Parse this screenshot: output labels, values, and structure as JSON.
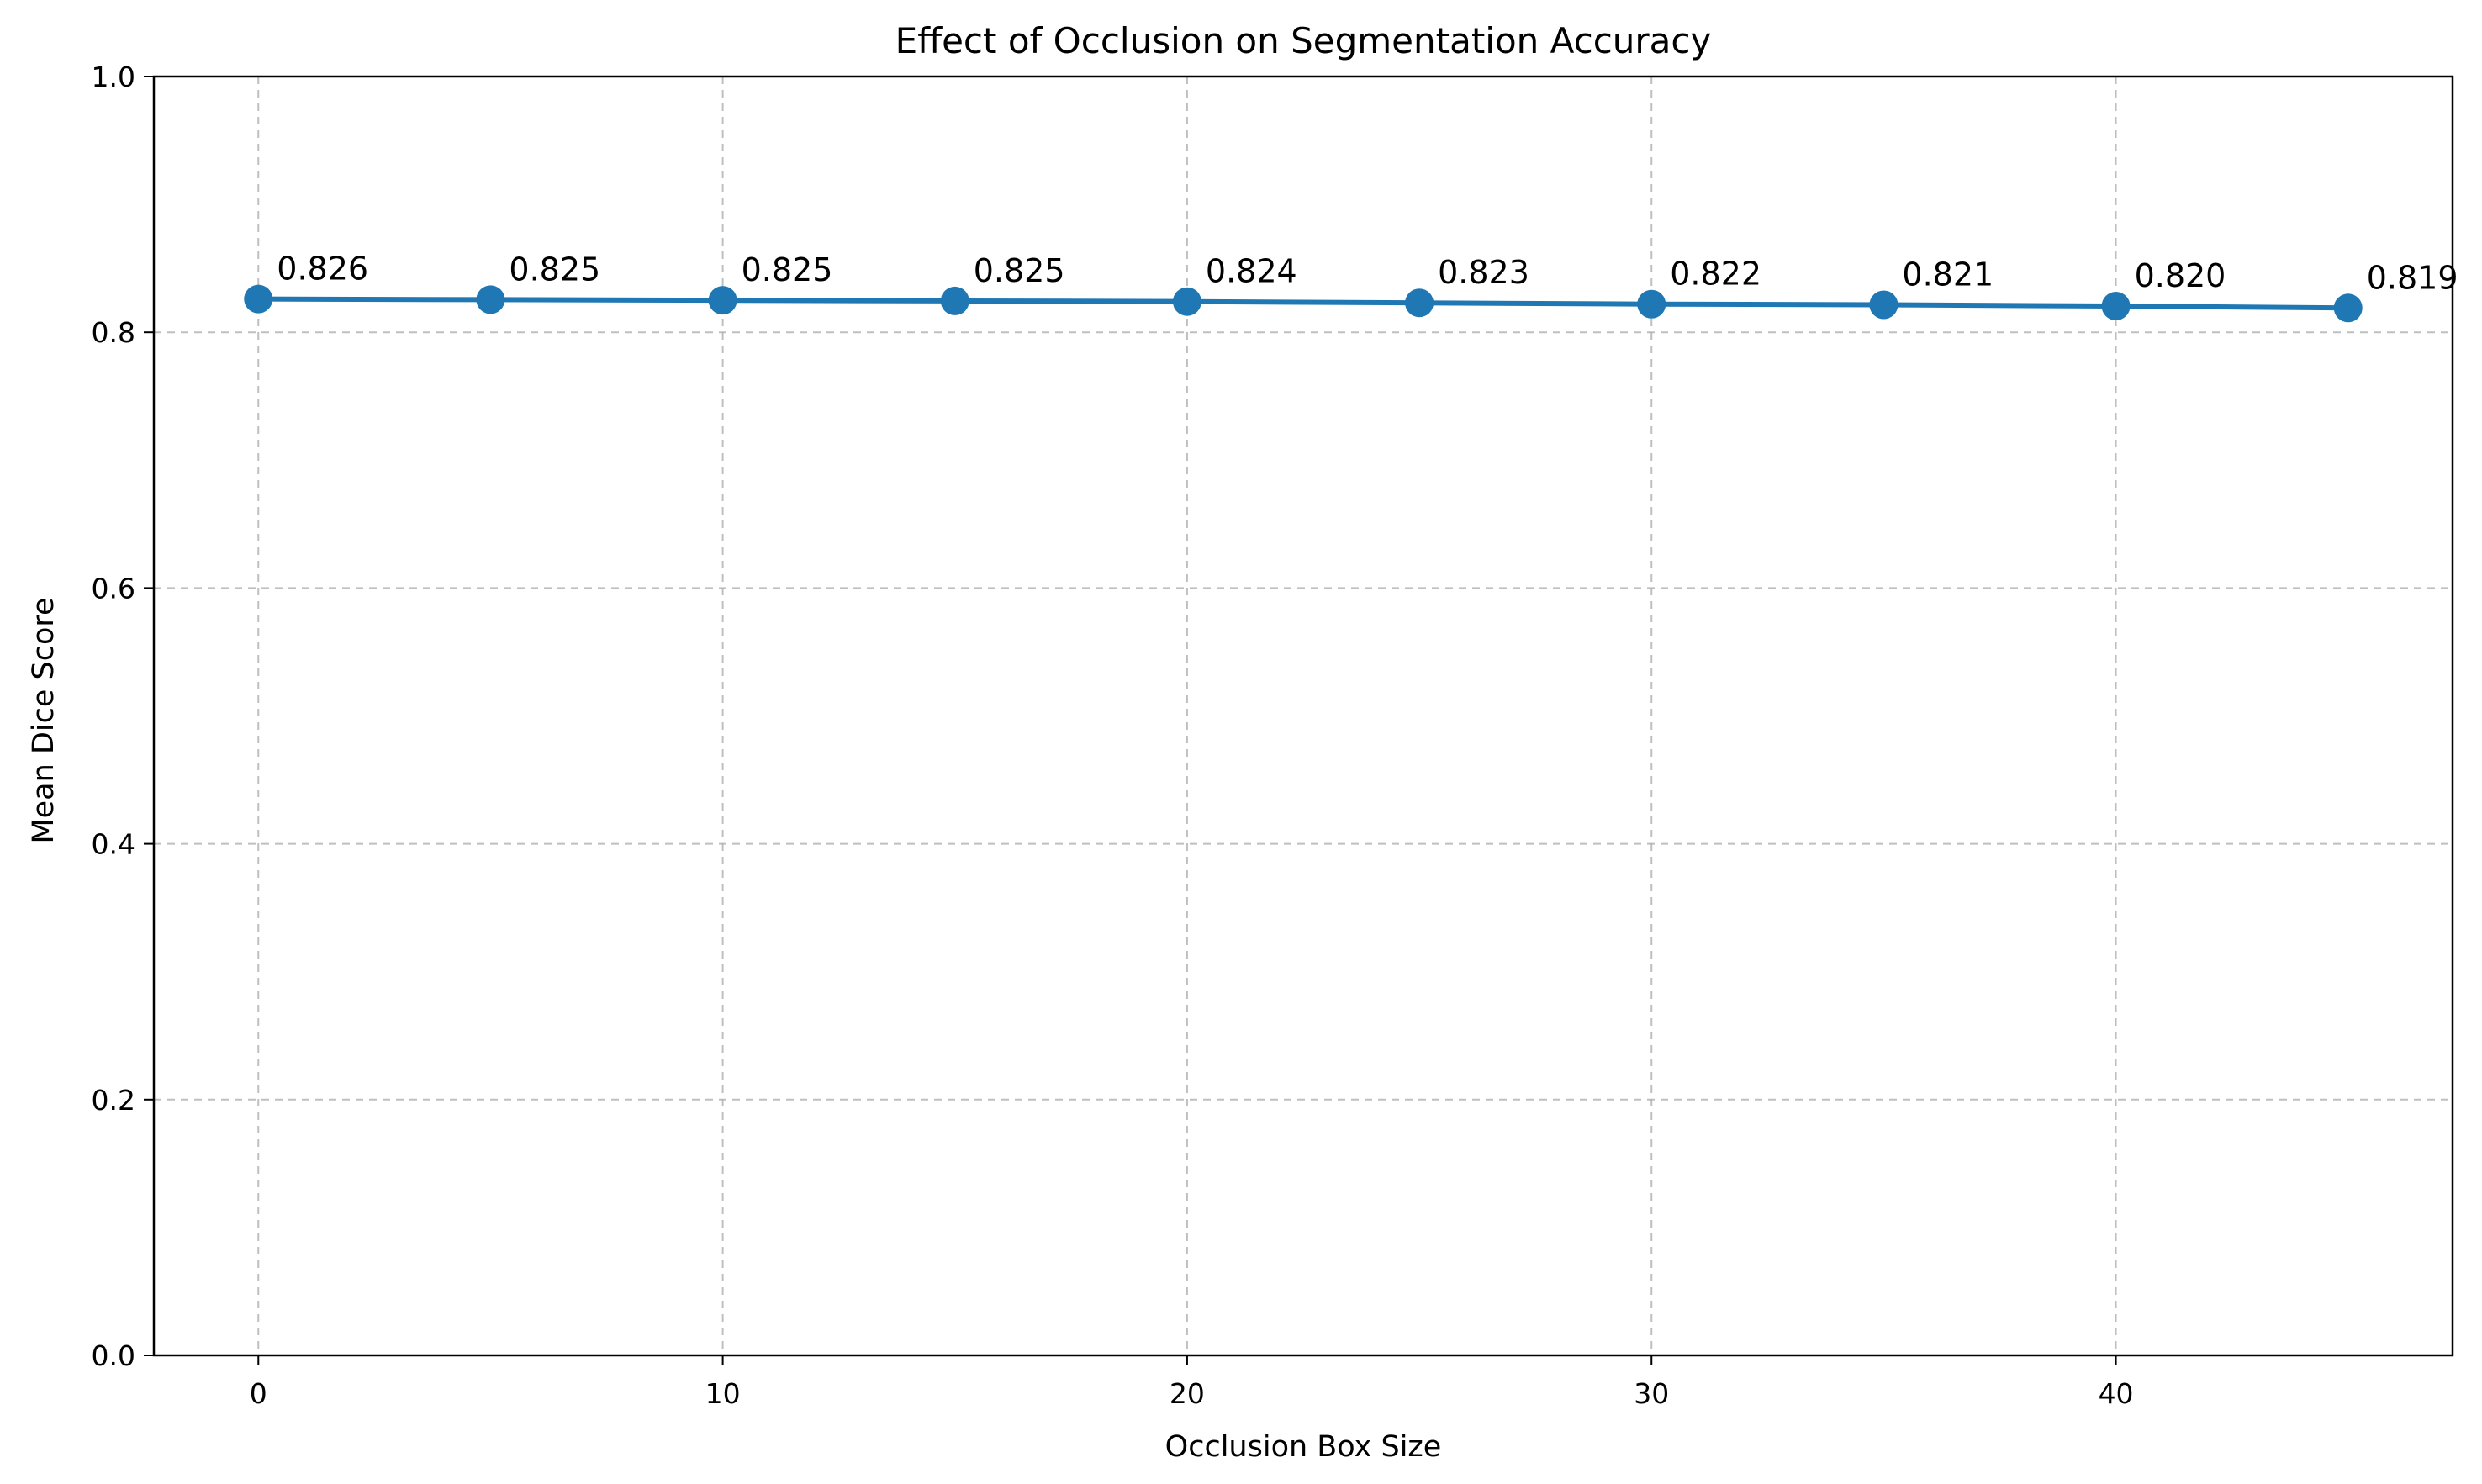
{
  "chart_data": {
    "type": "line",
    "title": "Effect of Occlusion on Segmentation Accuracy",
    "xlabel": "Occlusion Box Size",
    "ylabel": "Mean Dice Score",
    "x": [
      0,
      5,
      10,
      15,
      20,
      25,
      30,
      35,
      40,
      45
    ],
    "y": [
      0.826,
      0.8255,
      0.825,
      0.8245,
      0.824,
      0.823,
      0.822,
      0.8215,
      0.8205,
      0.819
    ],
    "data_labels": [
      "0.826",
      "0.825",
      "0.825",
      "0.825",
      "0.824",
      "0.823",
      "0.822",
      "0.821",
      "0.820",
      "0.819"
    ],
    "xlim": [
      -2.25,
      47.25
    ],
    "ylim": [
      0,
      1.0
    ],
    "xticks": [
      0,
      10,
      20,
      30,
      40
    ],
    "xtick_labels": [
      "0",
      "10",
      "20",
      "30",
      "40"
    ],
    "yticks": [
      0,
      0.2,
      0.4,
      0.6,
      0.8,
      1.0
    ],
    "ytick_labels": [
      "0.0",
      "0.2",
      "0.4",
      "0.6",
      "0.8",
      "1.0"
    ],
    "grid": true,
    "line_color": "#1f77b4",
    "marker": "circle"
  }
}
